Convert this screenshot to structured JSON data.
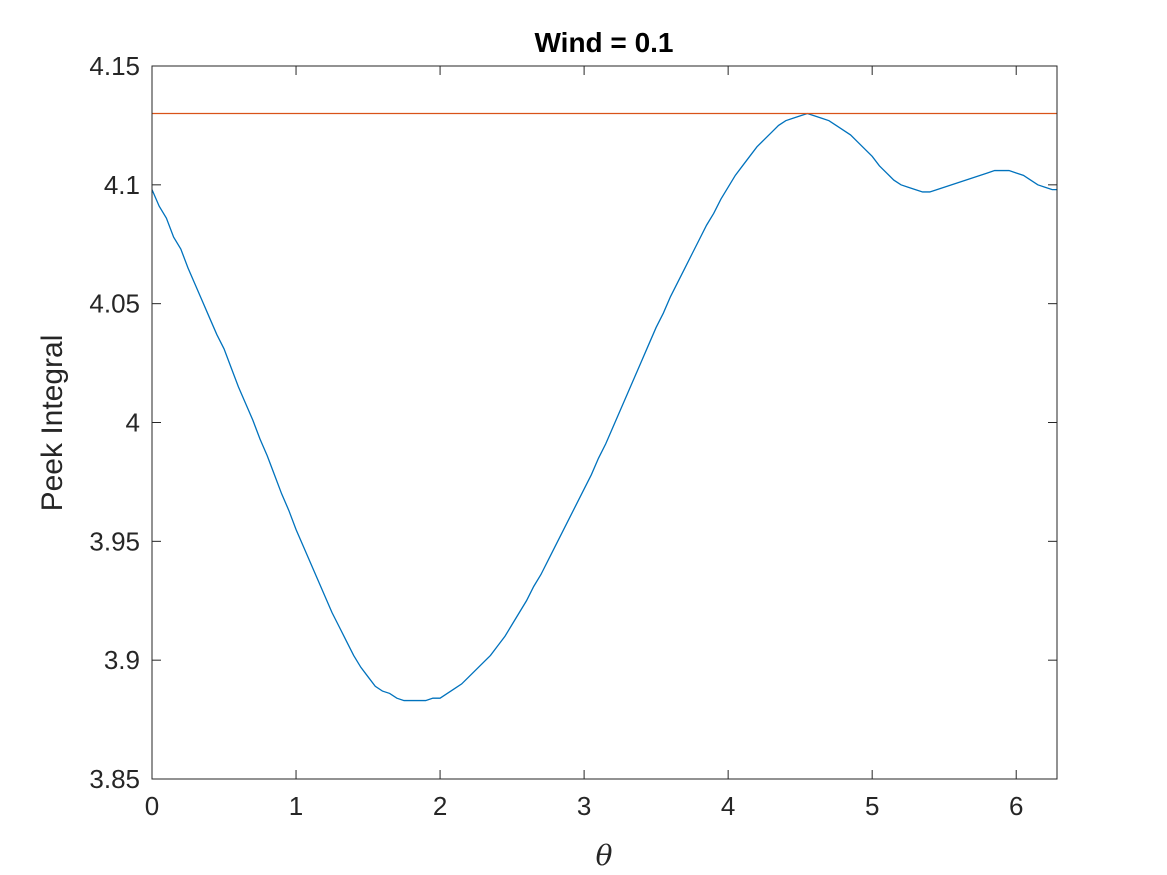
{
  "chart_data": {
    "type": "line",
    "title": "Wind = 0.1",
    "xlabel": "θ",
    "ylabel": "Peek Integral",
    "xlim": [
      0,
      6.2832
    ],
    "ylim": [
      3.85,
      4.15
    ],
    "xticks": [
      0,
      1,
      2,
      3,
      4,
      5,
      6
    ],
    "xtick_labels": [
      "0",
      "1",
      "2",
      "3",
      "4",
      "5",
      "6"
    ],
    "yticks": [
      3.85,
      3.9,
      3.95,
      4.0,
      4.05,
      4.1,
      4.15
    ],
    "ytick_labels": [
      "3.85",
      "3.9",
      "3.95",
      "4",
      "4.05",
      "4.1",
      "4.15"
    ],
    "grid": false,
    "box": true,
    "series": [
      {
        "color": "#0072BD",
        "x": [
          0.0,
          0.05,
          0.1,
          0.15,
          0.2,
          0.25,
          0.3,
          0.35,
          0.4,
          0.45,
          0.5,
          0.55,
          0.6,
          0.65,
          0.7,
          0.75,
          0.8,
          0.85,
          0.9,
          0.95,
          1.0,
          1.05,
          1.1,
          1.15,
          1.2,
          1.25,
          1.3,
          1.35,
          1.4,
          1.45,
          1.5,
          1.55,
          1.6,
          1.65,
          1.7,
          1.75,
          1.8,
          1.85,
          1.9,
          1.95,
          2.0,
          2.05,
          2.1,
          2.15,
          2.2,
          2.25,
          2.3,
          2.35,
          2.4,
          2.45,
          2.5,
          2.55,
          2.6,
          2.65,
          2.7,
          2.75,
          2.8,
          2.85,
          2.9,
          2.95,
          3.0,
          3.05,
          3.1,
          3.15,
          3.2,
          3.25,
          3.3,
          3.35,
          3.4,
          3.45,
          3.5,
          3.55,
          3.6,
          3.65,
          3.7,
          3.75,
          3.8,
          3.85,
          3.9,
          3.95,
          4.0,
          4.05,
          4.1,
          4.15,
          4.2,
          4.25,
          4.3,
          4.35,
          4.4,
          4.45,
          4.5,
          4.55,
          4.6,
          4.65,
          4.7,
          4.75,
          4.8,
          4.85,
          4.9,
          4.95,
          5.0,
          5.05,
          5.1,
          5.15,
          5.2,
          5.25,
          5.3,
          5.35,
          5.4,
          5.45,
          5.5,
          5.55,
          5.6,
          5.65,
          5.7,
          5.75,
          5.8,
          5.85,
          5.9,
          5.95,
          6.0,
          6.05,
          6.1,
          6.15,
          6.2,
          6.25,
          6.2832
        ],
        "y": [
          4.098,
          4.091,
          4.086,
          4.078,
          4.073,
          4.065,
          4.058,
          4.051,
          4.044,
          4.037,
          4.031,
          4.023,
          4.015,
          4.008,
          4.001,
          3.993,
          3.986,
          3.978,
          3.97,
          3.963,
          3.955,
          3.948,
          3.941,
          3.934,
          3.927,
          3.92,
          3.914,
          3.908,
          3.902,
          3.897,
          3.893,
          3.889,
          3.887,
          3.886,
          3.884,
          3.883,
          3.883,
          3.883,
          3.883,
          3.884,
          3.884,
          3.886,
          3.888,
          3.89,
          3.893,
          3.896,
          3.899,
          3.902,
          3.906,
          3.91,
          3.915,
          3.92,
          3.925,
          3.931,
          3.936,
          3.942,
          3.948,
          3.954,
          3.96,
          3.966,
          3.972,
          3.978,
          3.985,
          3.991,
          3.998,
          4.005,
          4.012,
          4.019,
          4.026,
          4.033,
          4.04,
          4.046,
          4.053,
          4.059,
          4.065,
          4.071,
          4.077,
          4.083,
          4.088,
          4.094,
          4.099,
          4.104,
          4.108,
          4.112,
          4.116,
          4.119,
          4.122,
          4.125,
          4.127,
          4.128,
          4.129,
          4.13,
          4.129,
          4.128,
          4.127,
          4.125,
          4.123,
          4.121,
          4.118,
          4.115,
          4.112,
          4.108,
          4.105,
          4.102,
          4.1,
          4.099,
          4.098,
          4.097,
          4.097,
          4.098,
          4.099,
          4.1,
          4.101,
          4.102,
          4.103,
          4.104,
          4.105,
          4.106,
          4.106,
          4.106,
          4.105,
          4.104,
          4.102,
          4.1,
          4.099,
          4.098,
          4.098
        ]
      },
      {
        "color": "#D95319",
        "x": [
          0,
          6.2832
        ],
        "y": [
          4.13,
          4.13
        ]
      }
    ]
  }
}
